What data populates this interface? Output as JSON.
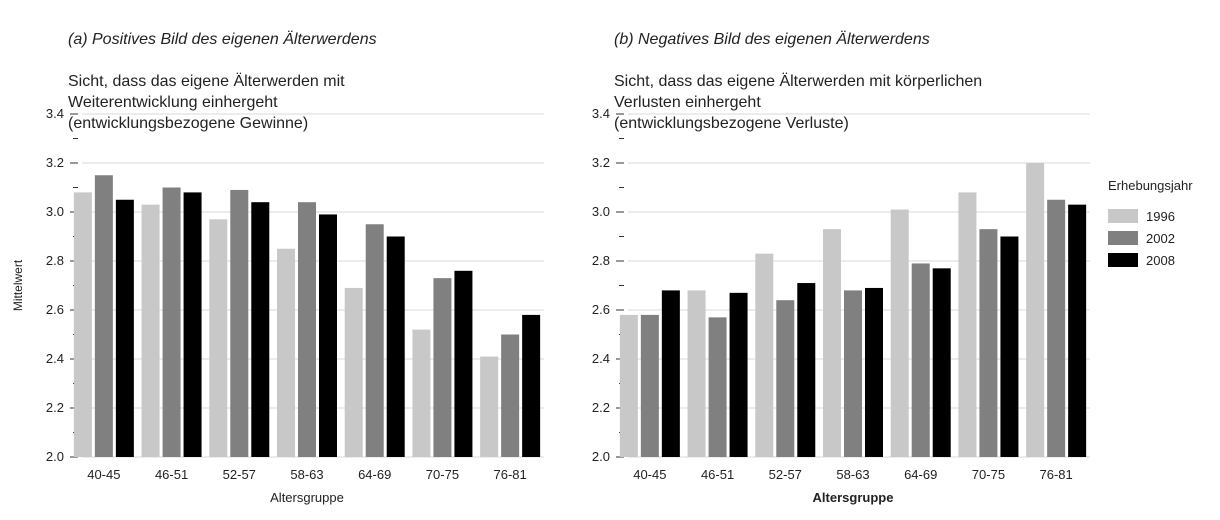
{
  "chart_data": [
    {
      "type": "bar",
      "panel": "a",
      "title": "(a) Positives Bild des eigenen Älterwerdens",
      "subtitle": "Sicht, dass das eigene Älterwerden mit\nWeiterentwicklung einhergeht\n(entwicklungsbezogene Gewinne)",
      "xlabel": "Altersgruppe",
      "ylabel": "Mittelwert",
      "ylim": [
        2.0,
        3.4
      ],
      "yticks": [
        "2.0",
        "2.2",
        "2.4",
        "2.6",
        "2.8",
        "3.0",
        "3.2",
        "3.4"
      ],
      "categories": [
        "40-45",
        "46-51",
        "52-57",
        "58-63",
        "64-69",
        "70-75",
        "76-81"
      ],
      "series": [
        {
          "name": "1996",
          "color": "#c8c8c8",
          "values": [
            3.08,
            3.03,
            2.97,
            2.85,
            2.69,
            2.52,
            2.41
          ]
        },
        {
          "name": "2002",
          "color": "#808080",
          "values": [
            3.15,
            3.1,
            3.09,
            3.04,
            2.95,
            2.73,
            2.5
          ]
        },
        {
          "name": "2008",
          "color": "#000000",
          "values": [
            3.05,
            3.08,
            3.04,
            2.99,
            2.9,
            2.76,
            2.58
          ]
        }
      ],
      "grid": true
    },
    {
      "type": "bar",
      "panel": "b",
      "title": "(b) Negatives Bild des eigenen Älterwerdens",
      "subtitle": "Sicht, dass das eigene Älterwerden mit körperlichen\nVerlusten einhergeht\n(entwicklungsbezogene Verluste)",
      "xlabel": "Altersgruppe",
      "ylabel": "",
      "ylim": [
        2.0,
        3.4
      ],
      "yticks": [
        "2.0",
        "2.2",
        "2.4",
        "2.6",
        "2.8",
        "3.0",
        "3.2",
        "3.4"
      ],
      "categories": [
        "40-45",
        "46-51",
        "52-57",
        "58-63",
        "64-69",
        "70-75",
        "76-81"
      ],
      "series": [
        {
          "name": "1996",
          "color": "#c8c8c8",
          "values": [
            2.58,
            2.68,
            2.83,
            2.93,
            3.01,
            3.08,
            3.2
          ]
        },
        {
          "name": "2002",
          "color": "#808080",
          "values": [
            2.58,
            2.57,
            2.64,
            2.68,
            2.79,
            2.93,
            3.05
          ]
        },
        {
          "name": "2008",
          "color": "#000000",
          "values": [
            2.68,
            2.67,
            2.71,
            2.69,
            2.77,
            2.9,
            3.03
          ]
        }
      ],
      "grid": true
    }
  ],
  "legend": {
    "title": "Erhebungsjahr",
    "placement": "right",
    "items": [
      {
        "label": "1996",
        "color": "#c8c8c8"
      },
      {
        "label": "2002",
        "color": "#808080"
      },
      {
        "label": "2008",
        "color": "#000000"
      }
    ]
  }
}
